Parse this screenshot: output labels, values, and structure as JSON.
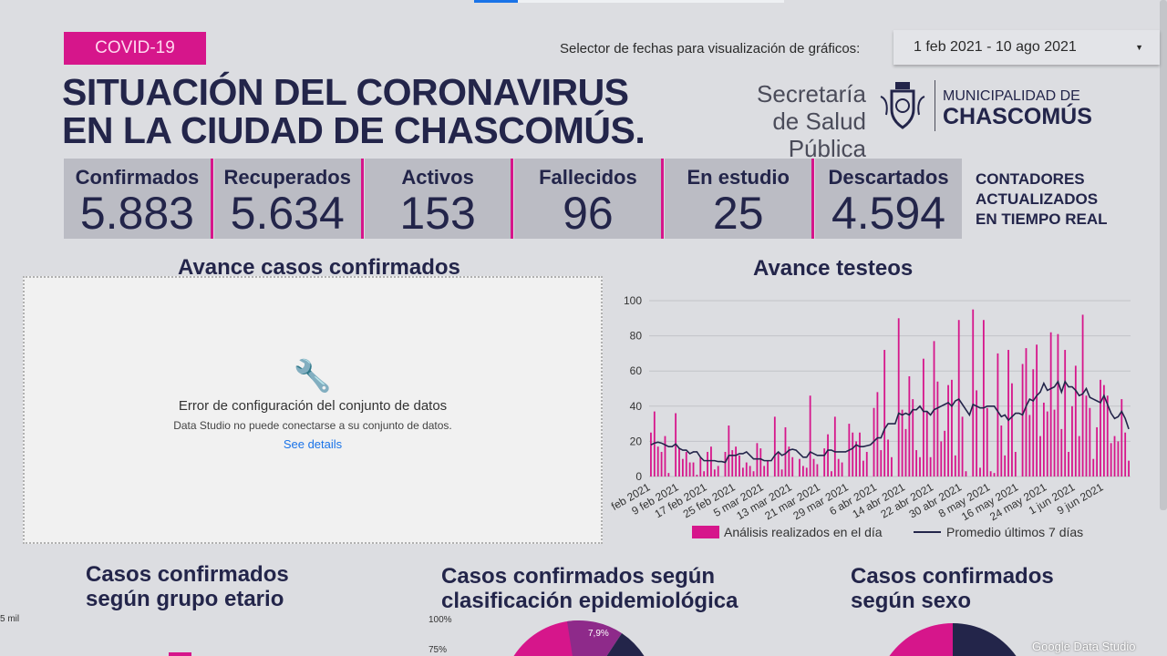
{
  "header": {
    "badge": "COVID-19",
    "title_line1": "SITUACIÓN DEL CORONAVIRUS",
    "title_line2": "EN LA CIUDAD DE CHASCOMÚS.",
    "date_selector_label": "Selector de fechas para visualización de gráficos:",
    "date_range": "1 feb 2021 - 10 ago 2021",
    "secretaria_line1": "Secretaría",
    "secretaria_line2": "de Salud Pública",
    "municipalidad_line1": "MUNICIPALIDAD DE",
    "municipalidad_line2": "CHASCOMÚS"
  },
  "counters": [
    {
      "label": "Confirmados",
      "value": "5.883"
    },
    {
      "label": "Recuperados",
      "value": "5.634"
    },
    {
      "label": "Activos",
      "value": "153"
    },
    {
      "label": "Fallecidos",
      "value": "96"
    },
    {
      "label": "En estudio",
      "value": "25"
    },
    {
      "label": "Descartados",
      "value": "4.594"
    }
  ],
  "realtime_note": [
    "CONTADORES",
    "ACTUALIZADOS",
    "EN TIEMPO REAL"
  ],
  "confirmed_panel": {
    "title": "Avance casos confirmados",
    "error_title": "Error de configuración del conjunto de datos",
    "error_text": "Data Studio no puede conectarse a su conjunto de datos.",
    "details_link": "See details"
  },
  "sections": {
    "age_title_1": "Casos confirmados",
    "age_title_2": "según grupo etario",
    "age_tick": "5 mil",
    "epi_title_1": "Casos confirmados según",
    "epi_title_2": "clasificación epidemiológica",
    "epi_ticks": [
      "100%",
      "75%"
    ],
    "epi_slice_label": "7,9%",
    "sex_title_1": "Casos confirmados",
    "sex_title_2": "según sexo"
  },
  "watermark": "Google Data Studio",
  "colors": {
    "magenta": "#d6168b",
    "navy": "#23254a",
    "purple": "#8e2a8a"
  },
  "chart_data": {
    "type": "bar+line",
    "title": "Avance testeos",
    "ylim": [
      0,
      100
    ],
    "y_ticks": [
      0,
      20,
      40,
      60,
      80,
      100
    ],
    "grid": true,
    "legend_position": "bottom",
    "x_tick_labels": [
      "1 feb 2021",
      "9 feb 2021",
      "17 feb 2021",
      "25 feb 2021",
      "5 mar 2021",
      "13 mar 2021",
      "21 mar 2021",
      "29 mar 2021",
      "6 abr 2021",
      "14 abr 2021",
      "22 abr 2021",
      "30 abr 2021",
      "8 may 2021",
      "16 may 2021",
      "24 may 2021",
      "1 jun 2021",
      "9 jun 2021"
    ],
    "x_tick_every_days": 8,
    "series": [
      {
        "name": "Análisis realizados en el día",
        "type": "bar",
        "color": "#d6168b",
        "values": [
          25,
          37,
          17,
          14,
          23,
          2,
          0,
          36,
          16,
          10,
          14,
          8,
          8,
          1,
          11,
          3,
          14,
          17,
          4,
          6,
          0,
          14,
          29,
          15,
          17,
          12,
          5,
          8,
          6,
          3,
          19,
          16,
          6,
          9,
          0,
          34,
          14,
          4,
          28,
          17,
          11,
          0,
          10,
          6,
          5,
          46,
          10,
          7,
          0,
          16,
          24,
          3,
          34,
          10,
          8,
          0,
          30,
          25,
          20,
          25,
          9,
          14,
          0,
          39,
          48,
          15,
          72,
          21,
          11,
          0,
          90,
          38,
          27,
          57,
          44,
          15,
          11,
          67,
          37,
          11,
          77,
          54,
          20,
          26,
          52,
          55,
          12,
          89,
          34,
          3,
          0,
          95,
          49,
          5,
          89,
          39,
          3,
          2,
          70,
          29,
          12,
          72,
          53,
          14,
          0,
          64,
          73,
          35,
          61,
          75,
          23,
          42,
          37,
          82,
          38,
          81,
          27,
          72,
          14,
          40,
          63,
          23,
          92,
          46,
          39,
          10,
          28,
          55,
          52,
          46,
          19,
          23,
          20,
          44,
          25,
          9
        ]
      },
      {
        "name": "Promedio últimos 7 días",
        "type": "line",
        "color": "#23254a",
        "values": [
          18,
          19,
          19.5,
          19,
          18,
          17,
          17,
          18.5,
          16,
          15,
          15,
          13,
          14,
          14,
          11,
          9,
          9,
          9,
          9,
          8.5,
          8.5,
          8,
          12,
          12,
          12,
          13,
          13,
          14,
          12,
          10,
          10,
          10,
          9,
          9,
          9,
          12,
          14,
          12,
          13,
          15,
          15.5,
          15,
          13,
          11,
          11,
          14,
          13,
          12,
          12,
          12,
          15,
          15,
          14,
          14,
          14,
          14,
          15,
          16,
          18,
          17,
          17,
          17.5,
          18,
          20,
          22,
          22,
          27,
          30,
          30,
          30,
          36,
          35,
          36,
          35,
          38,
          38,
          40,
          37,
          37,
          35,
          38,
          39,
          40,
          41,
          42,
          40,
          43,
          44,
          41,
          38,
          35,
          41,
          40,
          39,
          39,
          40,
          40,
          40,
          37,
          34,
          35,
          32,
          34,
          36,
          36,
          35,
          40,
          44,
          43,
          46,
          48,
          53,
          49,
          50,
          51,
          54,
          48,
          54,
          51,
          51,
          49,
          46,
          47,
          50,
          45,
          44,
          43,
          42,
          46,
          41,
          36,
          33,
          34,
          37,
          33,
          27
        ]
      }
    ]
  }
}
